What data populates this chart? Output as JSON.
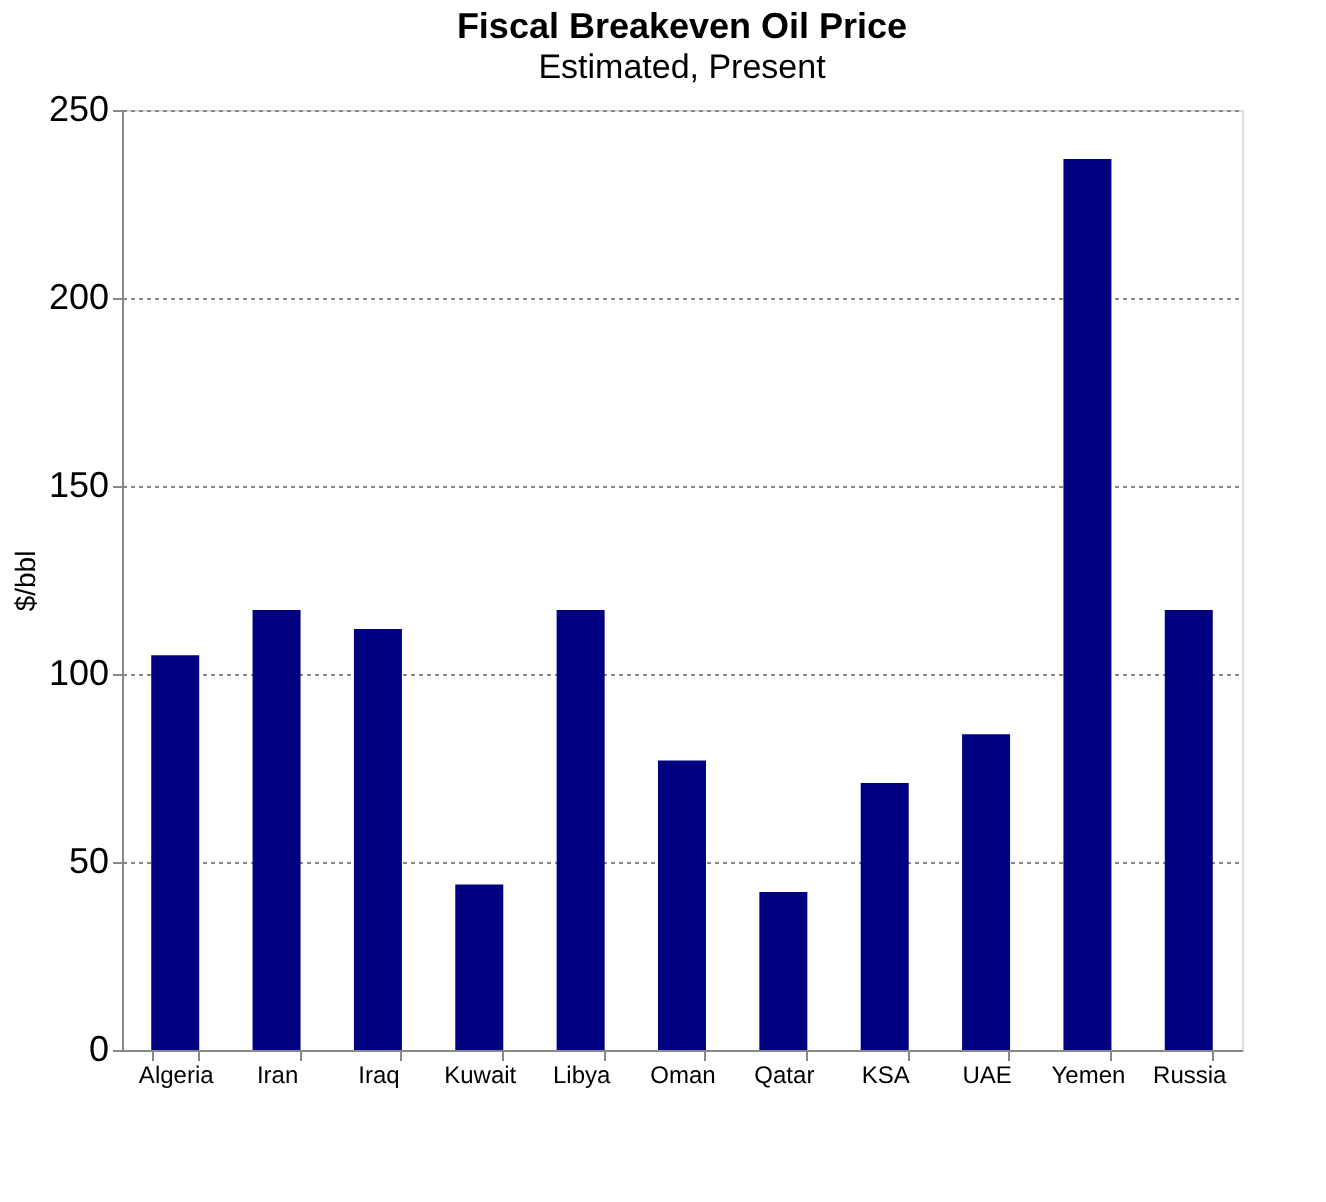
{
  "chart_data": {
    "type": "bar",
    "title": "Fiscal Breakeven Oil Price",
    "subtitle": "Estimated, Present",
    "ylabel": "$/bbl",
    "categories": [
      "Algeria",
      "Iran",
      "Iraq",
      "Kuwait",
      "Libya",
      "Oman",
      "Qatar",
      "KSA",
      "UAE",
      "Yemen",
      "Russia"
    ],
    "values": [
      105,
      117,
      112,
      44,
      117,
      77,
      42,
      71,
      84,
      237,
      117
    ],
    "color": "#000080",
    "ylim": [
      0,
      250
    ],
    "yticks": [
      0,
      50,
      100,
      150,
      200,
      250
    ],
    "grid": "y"
  }
}
